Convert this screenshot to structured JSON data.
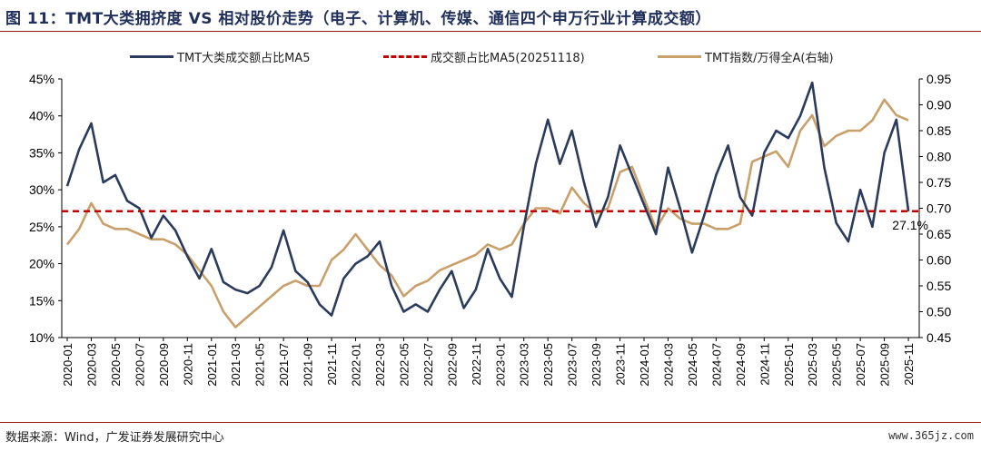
{
  "title": "图  11：TMT大类拥挤度  VS  相对股价走势（电子、计算机、传媒、通信四个申万行业计算成交额）",
  "footer": {
    "source": "数据来源：Wind，广发证券发展研究中心",
    "watermark": "www.365jz.com"
  },
  "colors": {
    "navy": "#2b3b5c",
    "red": "#c00000",
    "tan": "#c9a06a",
    "rule": "#9b1b1b"
  },
  "chart_data": {
    "type": "line",
    "legend_position": "top",
    "grid": false,
    "series": [
      {
        "name": "TMT大类成交额占比MA5",
        "axis": "left",
        "color": "#2b3b5c",
        "points": [
          [
            "2020-01",
            30.5
          ],
          [
            "2020-02",
            35.5
          ],
          [
            "2020-03",
            39.0
          ],
          [
            "2020-04",
            31.0
          ],
          [
            "2020-05",
            32.0
          ],
          [
            "2020-06",
            28.5
          ],
          [
            "2020-07",
            27.5
          ],
          [
            "2020-08",
            23.5
          ],
          [
            "2020-09",
            26.5
          ],
          [
            "2020-10",
            24.5
          ],
          [
            "2020-11",
            21.0
          ],
          [
            "2020-12",
            18.0
          ],
          [
            "2021-01",
            22.0
          ],
          [
            "2021-02",
            17.5
          ],
          [
            "2021-03",
            16.5
          ],
          [
            "2021-04",
            16.0
          ],
          [
            "2021-05",
            17.0
          ],
          [
            "2021-06",
            19.5
          ],
          [
            "2021-07",
            24.5
          ],
          [
            "2021-08",
            19.0
          ],
          [
            "2021-09",
            17.5
          ],
          [
            "2021-10",
            14.5
          ],
          [
            "2021-11",
            13.0
          ],
          [
            "2021-12",
            18.0
          ],
          [
            "2022-01",
            20.0
          ],
          [
            "2022-02",
            21.0
          ],
          [
            "2022-03",
            23.0
          ],
          [
            "2022-04",
            17.0
          ],
          [
            "2022-05",
            13.5
          ],
          [
            "2022-06",
            14.5
          ],
          [
            "2022-07",
            13.5
          ],
          [
            "2022-08",
            16.5
          ],
          [
            "2022-09",
            19.0
          ],
          [
            "2022-10",
            14.0
          ],
          [
            "2022-11",
            16.5
          ],
          [
            "2022-12",
            22.0
          ],
          [
            "2023-01",
            18.0
          ],
          [
            "2023-02",
            15.5
          ],
          [
            "2023-03",
            25.0
          ],
          [
            "2023-04",
            33.5
          ],
          [
            "2023-05",
            39.5
          ],
          [
            "2023-06",
            33.5
          ],
          [
            "2023-07",
            38.0
          ],
          [
            "2023-08",
            31.0
          ],
          [
            "2023-09",
            25.0
          ],
          [
            "2023-10",
            29.0
          ],
          [
            "2023-11",
            36.0
          ],
          [
            "2023-12",
            32.0
          ],
          [
            "2024-01",
            28.0
          ],
          [
            "2024-02",
            24.0
          ],
          [
            "2024-03",
            33.0
          ],
          [
            "2024-04",
            27.5
          ],
          [
            "2024-05",
            21.5
          ],
          [
            "2024-06",
            26.5
          ],
          [
            "2024-07",
            32.0
          ],
          [
            "2024-08",
            36.0
          ],
          [
            "2024-09",
            29.0
          ],
          [
            "2024-10",
            26.5
          ],
          [
            "2024-11",
            35.0
          ],
          [
            "2024-12",
            38.0
          ],
          [
            "2025-01",
            37.0
          ],
          [
            "2025-02",
            40.0
          ],
          [
            "2025-03",
            44.5
          ],
          [
            "2025-04",
            33.0
          ],
          [
            "2025-05",
            25.5
          ],
          [
            "2025-06",
            23.0
          ],
          [
            "2025-07",
            30.0
          ],
          [
            "2025-08",
            25.0
          ],
          [
            "2025-09",
            35.0
          ],
          [
            "2025-10",
            39.5
          ],
          [
            "2025-11",
            27.1
          ]
        ]
      },
      {
        "name": "成交额占比MA5(20251118)",
        "axis": "left",
        "style": "dashed",
        "color": "#c00000",
        "value": 27.1
      },
      {
        "name": "TMT指数/万得全A(右轴)",
        "axis": "right",
        "color": "#c9a06a",
        "points": [
          [
            "2020-01",
            0.63
          ],
          [
            "2020-02",
            0.66
          ],
          [
            "2020-03",
            0.71
          ],
          [
            "2020-04",
            0.67
          ],
          [
            "2020-05",
            0.66
          ],
          [
            "2020-06",
            0.66
          ],
          [
            "2020-07",
            0.65
          ],
          [
            "2020-08",
            0.64
          ],
          [
            "2020-09",
            0.64
          ],
          [
            "2020-10",
            0.63
          ],
          [
            "2020-11",
            0.61
          ],
          [
            "2020-12",
            0.58
          ],
          [
            "2021-01",
            0.55
          ],
          [
            "2021-02",
            0.5
          ],
          [
            "2021-03",
            0.47
          ],
          [
            "2021-04",
            0.49
          ],
          [
            "2021-05",
            0.51
          ],
          [
            "2021-06",
            0.53
          ],
          [
            "2021-07",
            0.55
          ],
          [
            "2021-08",
            0.56
          ],
          [
            "2021-09",
            0.55
          ],
          [
            "2021-10",
            0.55
          ],
          [
            "2021-11",
            0.6
          ],
          [
            "2021-12",
            0.62
          ],
          [
            "2022-01",
            0.65
          ],
          [
            "2022-02",
            0.62
          ],
          [
            "2022-03",
            0.59
          ],
          [
            "2022-04",
            0.57
          ],
          [
            "2022-05",
            0.53
          ],
          [
            "2022-06",
            0.55
          ],
          [
            "2022-07",
            0.56
          ],
          [
            "2022-08",
            0.58
          ],
          [
            "2022-09",
            0.59
          ],
          [
            "2022-10",
            0.6
          ],
          [
            "2022-11",
            0.61
          ],
          [
            "2022-12",
            0.63
          ],
          [
            "2023-01",
            0.62
          ],
          [
            "2023-02",
            0.63
          ],
          [
            "2023-03",
            0.67
          ],
          [
            "2023-04",
            0.7
          ],
          [
            "2023-05",
            0.7
          ],
          [
            "2023-06",
            0.69
          ],
          [
            "2023-07",
            0.74
          ],
          [
            "2023-08",
            0.71
          ],
          [
            "2023-09",
            0.69
          ],
          [
            "2023-10",
            0.7
          ],
          [
            "2023-11",
            0.77
          ],
          [
            "2023-12",
            0.78
          ],
          [
            "2024-01",
            0.72
          ],
          [
            "2024-02",
            0.66
          ],
          [
            "2024-03",
            0.7
          ],
          [
            "2024-04",
            0.68
          ],
          [
            "2024-05",
            0.67
          ],
          [
            "2024-06",
            0.67
          ],
          [
            "2024-07",
            0.66
          ],
          [
            "2024-08",
            0.66
          ],
          [
            "2024-09",
            0.67
          ],
          [
            "2024-10",
            0.79
          ],
          [
            "2024-11",
            0.8
          ],
          [
            "2024-12",
            0.81
          ],
          [
            "2025-01",
            0.78
          ],
          [
            "2025-02",
            0.85
          ],
          [
            "2025-03",
            0.88
          ],
          [
            "2025-04",
            0.82
          ],
          [
            "2025-05",
            0.84
          ],
          [
            "2025-06",
            0.85
          ],
          [
            "2025-07",
            0.85
          ],
          [
            "2025-08",
            0.87
          ],
          [
            "2025-09",
            0.91
          ],
          [
            "2025-10",
            0.88
          ],
          [
            "2025-11",
            0.87
          ]
        ]
      }
    ],
    "annotations": [
      {
        "text": "27.1%"
      }
    ],
    "y_left": {
      "ticks": [
        "10%",
        "15%",
        "20%",
        "25%",
        "30%",
        "35%",
        "40%",
        "45%"
      ],
      "ylim": [
        10,
        45
      ]
    },
    "y_right": {
      "ticks": [
        "0.45",
        "0.50",
        "0.55",
        "0.60",
        "0.65",
        "0.70",
        "0.75",
        "0.80",
        "0.85",
        "0.90",
        "0.95"
      ],
      "ylim": [
        0.45,
        0.95
      ]
    },
    "x_ticks": [
      "2020-01",
      "2020-03",
      "2020-05",
      "2020-07",
      "2020-09",
      "2020-11",
      "2021-01",
      "2021-03",
      "2021-05",
      "2021-07",
      "2021-09",
      "2021-11",
      "2022-01",
      "2022-03",
      "2022-05",
      "2022-07",
      "2022-09",
      "2022-11",
      "2023-01",
      "2023-03",
      "2023-05",
      "2023-07",
      "2023-09",
      "2023-11",
      "2024-01",
      "2024-03",
      "2024-05",
      "2024-07",
      "2024-09",
      "2024-11",
      "2025-01",
      "2025-03",
      "2025-05",
      "2025-07",
      "2025-09",
      "2025-11"
    ]
  }
}
